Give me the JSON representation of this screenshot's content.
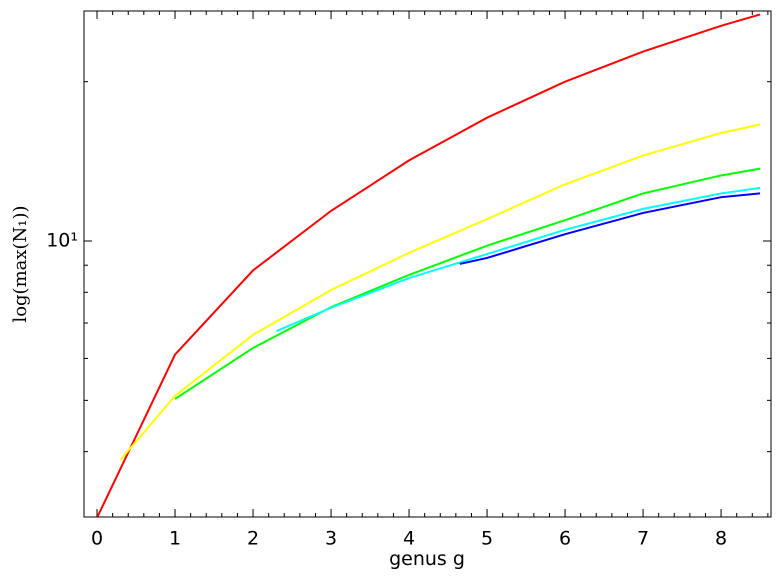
{
  "chart_data": {
    "type": "line",
    "xlabel": "genus g",
    "ylabel": "log(max(N₁))",
    "xlim": [
      -0.167,
      8.64
    ],
    "ylim": [
      3.01,
      27.2
    ],
    "log_y": true,
    "xticks": [
      0,
      1,
      2,
      3,
      4,
      5,
      6,
      7,
      8
    ],
    "xminorticks": [
      0.2,
      0.4,
      0.6,
      0.8,
      1.2,
      1.4,
      1.6,
      1.8,
      2.2,
      2.4,
      2.6,
      2.8,
      3.2,
      3.4,
      3.6,
      3.8,
      4.2,
      4.4,
      4.6,
      4.8,
      5.2,
      5.4,
      5.6,
      5.8,
      6.2,
      6.4,
      6.6,
      6.8,
      7.2,
      7.4,
      7.6,
      7.8,
      8.2,
      8.4,
      8.6
    ],
    "yticks": [
      {
        "value": 10,
        "label": "10¹"
      }
    ],
    "yminorticks": [
      4,
      5,
      6,
      7,
      8,
      9,
      20
    ],
    "series": [
      {
        "color": "#ff0000",
        "x": [
          0,
          1,
          2,
          3,
          4,
          5,
          6,
          7,
          8,
          8.5
        ],
        "values": [
          3.0,
          6.1,
          8.8,
          11.4,
          14.2,
          17.1,
          20.0,
          22.8,
          25.5,
          26.8
        ]
      },
      {
        "color": "#ffff00",
        "x": [
          0.3,
          1,
          2,
          3,
          4,
          5,
          6,
          7,
          8,
          8.5
        ],
        "values": [
          3.86,
          5.1,
          6.65,
          8.08,
          9.5,
          11.0,
          12.8,
          14.5,
          16.0,
          16.6
        ]
      },
      {
        "color": "#00ff00",
        "x": [
          1,
          2,
          3,
          4,
          5,
          6,
          7,
          8,
          8.5
        ],
        "values": [
          5.03,
          6.28,
          7.5,
          8.63,
          9.8,
          10.95,
          12.3,
          13.3,
          13.7
        ]
      },
      {
        "color": "#00ffff",
        "x": [
          2.3,
          3,
          4,
          5,
          6,
          7,
          8,
          8.5
        ],
        "values": [
          6.76,
          7.48,
          8.51,
          9.45,
          10.5,
          11.5,
          12.3,
          12.6
        ]
      },
      {
        "color": "#0000ff",
        "x": [
          4.65,
          5,
          6,
          7,
          8,
          8.5
        ],
        "values": [
          9.05,
          9.29,
          10.3,
          11.3,
          12.1,
          12.3
        ]
      }
    ]
  }
}
